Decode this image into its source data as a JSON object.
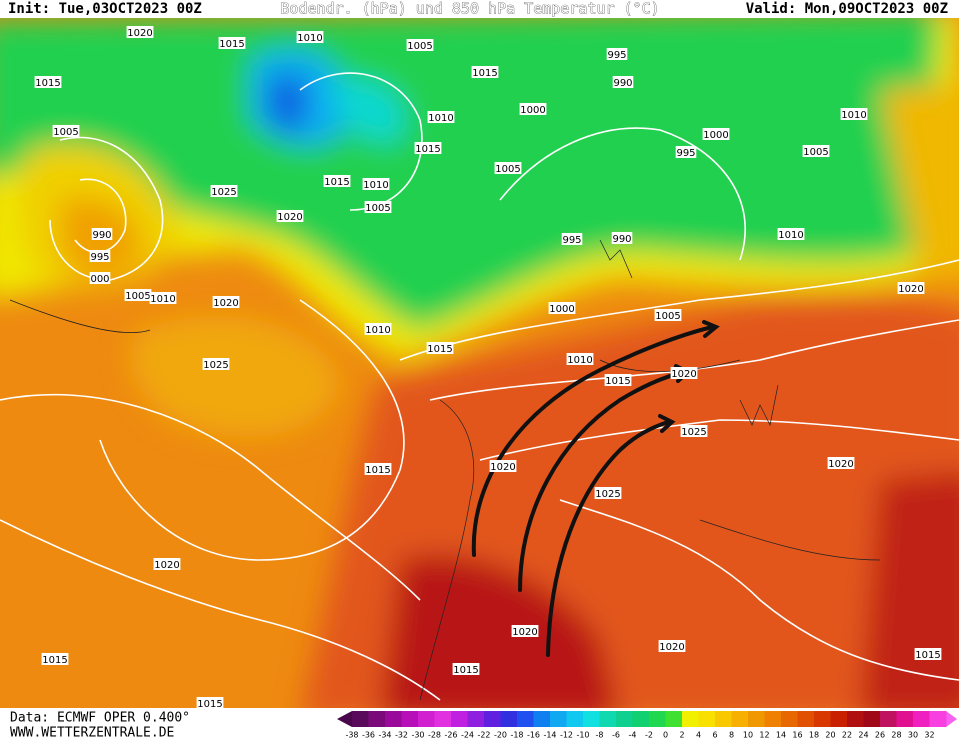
{
  "header": {
    "init": "Init: Tue,03OCT2023 00Z",
    "title": "Bodendr. (hPa) und 850 hPa Temperatur (°C)",
    "valid": "Valid: Mon,09OCT2023 00Z"
  },
  "footer": {
    "source": "Data: ECMWF OPER 0.400°",
    "website": "WWW.WETTERZENTRALE.DE"
  },
  "colorbar": {
    "ticks": [
      -38,
      -36,
      -34,
      -32,
      -30,
      -28,
      -26,
      -24,
      -22,
      -20,
      -18,
      -16,
      -14,
      -12,
      -10,
      -8,
      -6,
      -4,
      -2,
      0,
      2,
      4,
      6,
      8,
      10,
      12,
      14,
      16,
      18,
      20,
      22,
      24,
      26,
      28,
      30,
      32
    ],
    "colors": [
      "#5a0a5a",
      "#7a0a7a",
      "#9a0a9a",
      "#b810b8",
      "#d020d0",
      "#e030e0",
      "#c020e0",
      "#9020e0",
      "#6020e0",
      "#3030e0",
      "#2050f0",
      "#1080f0",
      "#10a8f0",
      "#10c8f0",
      "#10e0e0",
      "#10d8b0",
      "#10d090",
      "#10d070",
      "#20d850",
      "#40e030",
      "#f0f000",
      "#f8e000",
      "#f8c800",
      "#f8b000",
      "#f09800",
      "#f08000",
      "#e86800",
      "#e05000",
      "#d83800",
      "#c82000",
      "#b01010",
      "#a00818",
      "#c01060",
      "#e01090",
      "#f020c0",
      "#f840e0"
    ]
  },
  "isobar_labels": [
    "1020",
    "1015",
    "1010",
    "1005",
    "1015",
    "995",
    "990",
    "1015",
    "1005",
    "1010",
    "1015",
    "1000",
    "1005",
    "1000",
    "995",
    "1010",
    "1005",
    "1025",
    "1015",
    "1010",
    "1005",
    "1020",
    "990",
    "995",
    "000",
    "1005",
    "1010",
    "1020",
    "995",
    "990",
    "1010",
    "1020",
    "1000",
    "1005",
    "1010",
    "1015",
    "1010",
    "1015",
    "1020",
    "1025",
    "1025",
    "1015",
    "1020",
    "1020",
    "1025",
    "1020",
    "1020",
    "1020",
    "1015",
    "1015",
    "1015",
    "1015"
  ]
}
